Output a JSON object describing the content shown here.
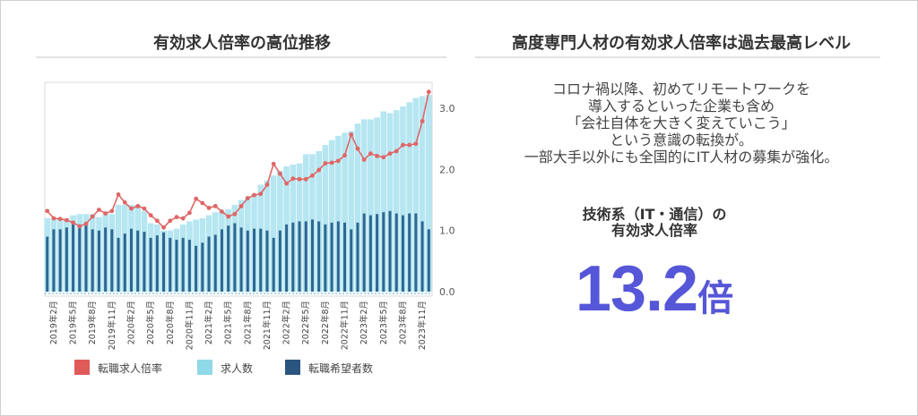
{
  "left_title": "有効求人倍率の高位推移",
  "right_title": "高度専門人材の有効求人倍率は過去最高レベル",
  "description": [
    "コロナ禍以降、初めてリモートワークを",
    "導入するといった企業も含め",
    "「会社自体を大きく変えていこう」",
    "という意識の転換が。",
    "一部大手以外にも全国的にIT人材の募集が強化。"
  ],
  "highlight": {
    "label_line1": "技術系（IT・通信）の",
    "label_line2": "有効求人倍率",
    "value": "13.2",
    "unit": "倍",
    "color": "#5656d8"
  },
  "chart_data": {
    "type": "bar",
    "title": "有効求人倍率の高位推移",
    "x_tick_labels": [
      "2019年2月",
      "2019年5月",
      "2019年8月",
      "2019年11月",
      "2020年2月",
      "2020年5月",
      "2020年8月",
      "2020年11月",
      "2021年2月",
      "2021年5月",
      "2021年8月",
      "2021年11月",
      "2022年2月",
      "2022年5月",
      "2022年8月",
      "2022年11月",
      "2023年2月",
      "2023年5月",
      "2023年8月",
      "2023年11月"
    ],
    "x_range": [
      "2019年1月",
      "2023年12月"
    ],
    "y_ticks": [
      "0.0",
      "1.0",
      "2.0",
      "3.0"
    ],
    "ylim": [
      0,
      3.4
    ],
    "legend_position": "bottom",
    "series": [
      {
        "name": "転職求人倍率",
        "type": "line",
        "color": "#e06666",
        "values": [
          1.32,
          1.2,
          1.19,
          1.17,
          1.13,
          1.07,
          1.11,
          1.23,
          1.34,
          1.28,
          1.32,
          1.59,
          1.46,
          1.36,
          1.4,
          1.36,
          1.25,
          1.16,
          1.05,
          1.16,
          1.22,
          1.2,
          1.29,
          1.52,
          1.45,
          1.37,
          1.4,
          1.31,
          1.23,
          1.27,
          1.4,
          1.53,
          1.58,
          1.6,
          1.75,
          2.09,
          1.93,
          1.77,
          1.85,
          1.84,
          1.84,
          1.9,
          1.99,
          2.1,
          2.11,
          2.14,
          2.23,
          2.57,
          2.34,
          2.16,
          2.26,
          2.22,
          2.2,
          2.26,
          2.3,
          2.4,
          2.4,
          2.42,
          2.79,
          3.27
        ]
      },
      {
        "name": "求人数",
        "type": "bar",
        "color": "#b6e6f1",
        "values": [
          1.2,
          1.2,
          1.2,
          1.2,
          1.25,
          1.27,
          1.27,
          1.27,
          1.22,
          1.27,
          1.27,
          1.42,
          1.42,
          1.42,
          1.42,
          1.32,
          1.12,
          1.1,
          1.0,
          1.0,
          1.03,
          1.1,
          1.15,
          1.18,
          1.2,
          1.25,
          1.3,
          1.32,
          1.35,
          1.42,
          1.5,
          1.55,
          1.6,
          1.75,
          1.82,
          1.9,
          1.98,
          2.05,
          2.08,
          2.1,
          2.25,
          2.25,
          2.3,
          2.4,
          2.48,
          2.55,
          2.6,
          2.63,
          2.75,
          2.82,
          2.82,
          2.85,
          2.95,
          2.92,
          2.97,
          3.03,
          3.1,
          3.17,
          3.2,
          3.22
        ]
      },
      {
        "name": "転職希望者数",
        "type": "bar",
        "color": "#2d6690",
        "values": [
          0.9,
          1.02,
          1.02,
          1.05,
          1.1,
          1.1,
          1.1,
          1.02,
          1.0,
          1.05,
          1.02,
          0.88,
          0.95,
          1.03,
          1.0,
          0.98,
          0.88,
          0.92,
          0.97,
          0.88,
          0.85,
          0.88,
          0.85,
          0.75,
          0.8,
          0.9,
          0.93,
          1.02,
          1.08,
          1.12,
          1.05,
          1.0,
          1.03,
          1.03,
          1.0,
          0.88,
          1.0,
          1.1,
          1.13,
          1.15,
          1.15,
          1.18,
          1.15,
          1.1,
          1.13,
          1.15,
          1.13,
          1.02,
          1.13,
          1.28,
          1.25,
          1.27,
          1.3,
          1.32,
          1.28,
          1.25,
          1.28,
          1.28,
          1.15,
          1.02
        ]
      }
    ],
    "legend_colors": [
      "#e05a5a",
      "#8fd9e8",
      "#2a5580"
    ]
  }
}
